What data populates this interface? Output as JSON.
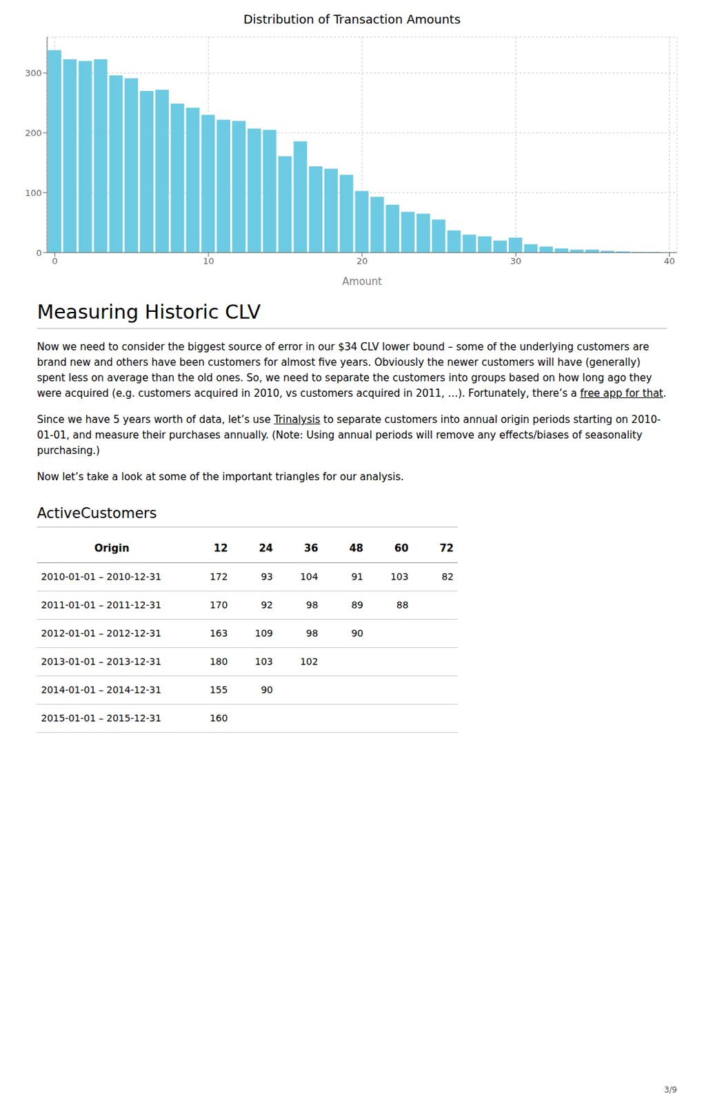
{
  "chart_data": {
    "type": "bar",
    "title": "Distribution of Transaction Amounts",
    "x_label": "Amount",
    "x": [
      0,
      1,
      2,
      3,
      4,
      5,
      6,
      7,
      8,
      9,
      10,
      11,
      12,
      13,
      14,
      15,
      16,
      17,
      18,
      19,
      20,
      21,
      22,
      23,
      24,
      25,
      26,
      27,
      28,
      29,
      30,
      31,
      32,
      33,
      34,
      35,
      36,
      37,
      38,
      39
    ],
    "values": [
      338,
      323,
      320,
      323,
      296,
      291,
      270,
      272,
      249,
      242,
      230,
      222,
      220,
      207,
      205,
      161,
      186,
      144,
      140,
      130,
      103,
      93,
      80,
      68,
      65,
      55,
      37,
      30,
      27,
      20,
      25,
      14,
      10,
      7,
      5,
      5,
      3,
      2,
      1,
      1
    ],
    "color": "#6CCAE2",
    "xlim": [
      -0.5,
      40.5
    ],
    "xticks": [
      0,
      10,
      20,
      30,
      40
    ],
    "ylim": [
      0,
      360
    ],
    "yticks": [
      0,
      100,
      200,
      300
    ],
    "grid": true
  },
  "section_title": "Measuring Historic CLV",
  "paragraphs": [
    [
      "Now we need to consider the biggest source of error in our $34 CLV lower bound – some of the underlying customers are brand new and others have been customers for almost five years. Obviously the newer customers will have (generally) spent less on average than the old ones. So, we need to separate the customers into groups based on how long ago they were acquired (e.g. customers acquired in 2010, vs customers acquired in 2011, …). Fortunately, there’s a ",
      "free app for that",
      "."
    ],
    [
      "Since we have 5 years worth of data, let’s use ",
      "Trinalysis",
      " to separate customers into annual origin periods starting on 2010-01-01, and measure their purchases annually. (Note: Using annual periods will remove any effects/biases of seasonality purchasing.)"
    ],
    [
      "Now let’s take a look at some of the important triangles for our analysis."
    ]
  ],
  "subsection_title": "ActiveCustomers",
  "table": {
    "headers": [
      "Origin",
      "12",
      "24",
      "36",
      "48",
      "60",
      "72"
    ],
    "rows": [
      [
        "2010-01-01 – 2010-12-31",
        172,
        93,
        104,
        91,
        103,
        82
      ],
      [
        "2011-01-01 – 2011-12-31",
        170,
        92,
        98,
        89,
        88
      ],
      [
        "2012-01-01 – 2012-12-31",
        163,
        109,
        98,
        90
      ],
      [
        "2013-01-01 – 2013-12-31",
        180,
        103,
        102
      ],
      [
        "2014-01-01 – 2014-12-31",
        155,
        90
      ],
      [
        "2015-01-01 – 2015-12-31",
        160
      ]
    ]
  },
  "page_number": "3/9"
}
